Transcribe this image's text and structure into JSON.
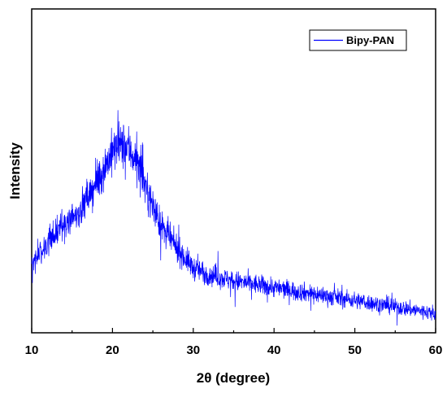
{
  "chart_data": {
    "type": "line",
    "xlabel": "2θ (degree)",
    "ylabel": "Intensity",
    "xlim": [
      10,
      60
    ],
    "ylim": [
      0,
      100
    ],
    "xticks": [
      10,
      20,
      30,
      40,
      50,
      60
    ],
    "y_tick_labels_shown": false,
    "grid": false,
    "legend": {
      "position": "top-right",
      "entries": [
        "Bipy-PAN"
      ]
    },
    "series": [
      {
        "name": "Bipy-PAN",
        "color": "#0000ff",
        "x": [
          10,
          12,
          14,
          16,
          18,
          19,
          20,
          21,
          22,
          23,
          24,
          25,
          26,
          28,
          30,
          32,
          35,
          40,
          45,
          50,
          55,
          60
        ],
        "y": [
          22,
          28,
          33,
          38,
          46,
          51,
          56,
          58,
          57,
          53,
          46,
          39,
          33,
          26,
          20,
          18,
          16,
          14,
          12,
          10,
          8,
          6
        ]
      }
    ]
  }
}
